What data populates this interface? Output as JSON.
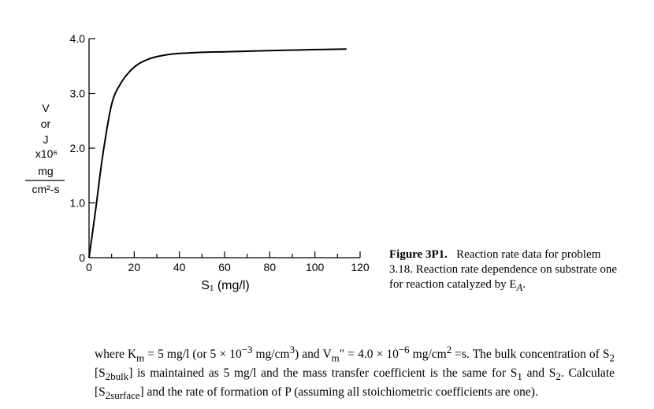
{
  "chart_data": {
    "type": "line",
    "title": "",
    "xlabel": "S₁ (mg/l)",
    "ylabel_lines": [
      "V",
      "or",
      "J",
      "x10⁶",
      "mg",
      "cm²-s"
    ],
    "xlim": [
      0,
      120
    ],
    "ylim": [
      0,
      4.0
    ],
    "x_ticks": [
      0,
      20,
      40,
      60,
      80,
      100,
      120
    ],
    "x_tick_labels": [
      "0",
      "20",
      "40",
      "60",
      "80",
      "100",
      "120"
    ],
    "y_ticks": [
      0,
      1.0,
      2.0,
      3.0,
      4.0
    ],
    "y_tick_labels": [
      "0",
      "1.0",
      "2.0",
      "3.0",
      "4.0"
    ],
    "series": [
      {
        "name": "reaction rate",
        "x": [
          0,
          3,
          6,
          10,
          14,
          18,
          22,
          26,
          30,
          35,
          40,
          50,
          60,
          80,
          100,
          114
        ],
        "y": [
          0,
          0.9,
          1.85,
          2.8,
          3.18,
          3.4,
          3.54,
          3.62,
          3.67,
          3.71,
          3.73,
          3.75,
          3.76,
          3.78,
          3.8,
          3.81
        ]
      }
    ]
  },
  "caption": {
    "label": "Figure 3P1.",
    "text": "Reaction rate data for problem 3.18. Reaction rate dependence on substrate one for reaction catalyzed by E",
    "subscript": "A",
    "end": "."
  },
  "problem": {
    "t1": "where K",
    "t1_sub": "m",
    "t2": " = 5 mg/l (or 5 × 10",
    "t2_sup": "−3",
    "t3": " mg/cm",
    "t3_sup": "3",
    "t4": ") and V",
    "t4_sub": "m",
    "t5": "″ = 4.0 × 10",
    "t5_sup": "−6",
    "t6": " mg/cm",
    "t6_sup": "2",
    "t7": " =s. The bulk concentration of S",
    "t7_sub": "2",
    "t8": " [S",
    "t8_sub": "2bulk",
    "t9": "] is maintained as 5 mg/l and the mass transfer coefficient is the same for S",
    "t9_sub": "1",
    "t10": " and S",
    "t10_sub": "2",
    "t11": ". Calculate [S",
    "t11_sub": "2surface",
    "t12": "] and the rate of formation of P (assuming all stoichiometric coefficients are one)."
  }
}
